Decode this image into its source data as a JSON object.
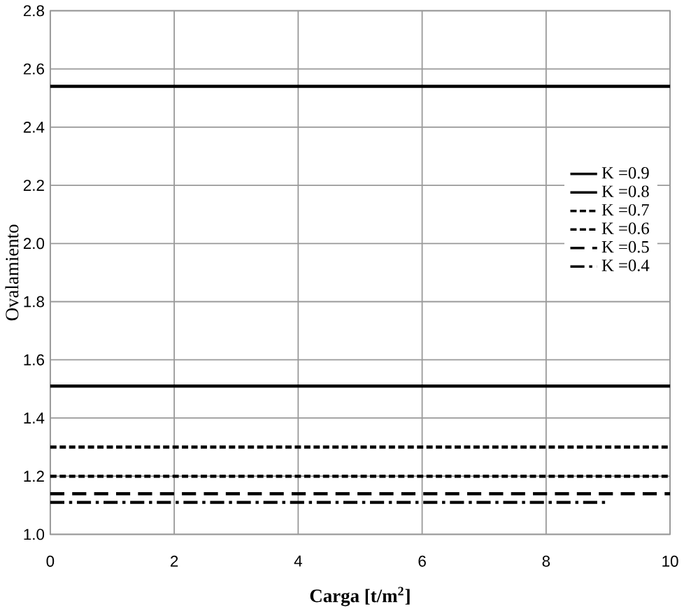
{
  "chart_data": {
    "type": "line",
    "xlabel": "Carga [t/m$^{2}$]",
    "ylabel": "Ovalamiento",
    "x": [
      0,
      10
    ],
    "series": [
      {
        "name": "K =0.9",
        "color": "#000000",
        "line_style": "solid",
        "values": [
          2.54,
          2.54
        ]
      },
      {
        "name": "K =0.8",
        "color": "#000000",
        "line_style": "solid",
        "values": [
          1.51,
          1.51
        ]
      },
      {
        "name": "K =0.7",
        "color": "#000000",
        "line_style": "dashed",
        "values": [
          1.3,
          1.3
        ]
      },
      {
        "name": "K =0.6",
        "color": "#000000",
        "line_style": "dashed",
        "values": [
          1.2,
          1.2
        ]
      },
      {
        "name": "K =0.5",
        "color": "#000000",
        "line_style": "longdashed",
        "values": [
          1.14,
          1.14
        ]
      },
      {
        "name": "K =0.4",
        "color": "#000000",
        "line_style": "dashdot",
        "x": [
          0,
          9
        ],
        "values": [
          1.11,
          1.11
        ]
      }
    ],
    "xlim": [
      0,
      10
    ],
    "xticks": [
      0,
      2,
      4,
      6,
      8,
      10
    ],
    "ylim": [
      1.0,
      2.8
    ],
    "yticks": [
      {
        "value": 1.0,
        "label": "1.0"
      },
      {
        "value": 1.2,
        "label": "1.2"
      },
      {
        "value": 1.4,
        "label": "1.4"
      },
      {
        "value": 1.6,
        "label": "1.6"
      },
      {
        "value": 1.8,
        "label": "1.8"
      },
      {
        "value": 2.0,
        "label": "2.0"
      },
      {
        "value": 2.2,
        "label": "2.2"
      },
      {
        "value": 2.4,
        "label": "2.4"
      },
      {
        "value": 2.6,
        "label": "2.6"
      },
      {
        "value": 2.8,
        "label": "2.8"
      }
    ],
    "grid": true,
    "legend": "right",
    "marker": "none"
  }
}
